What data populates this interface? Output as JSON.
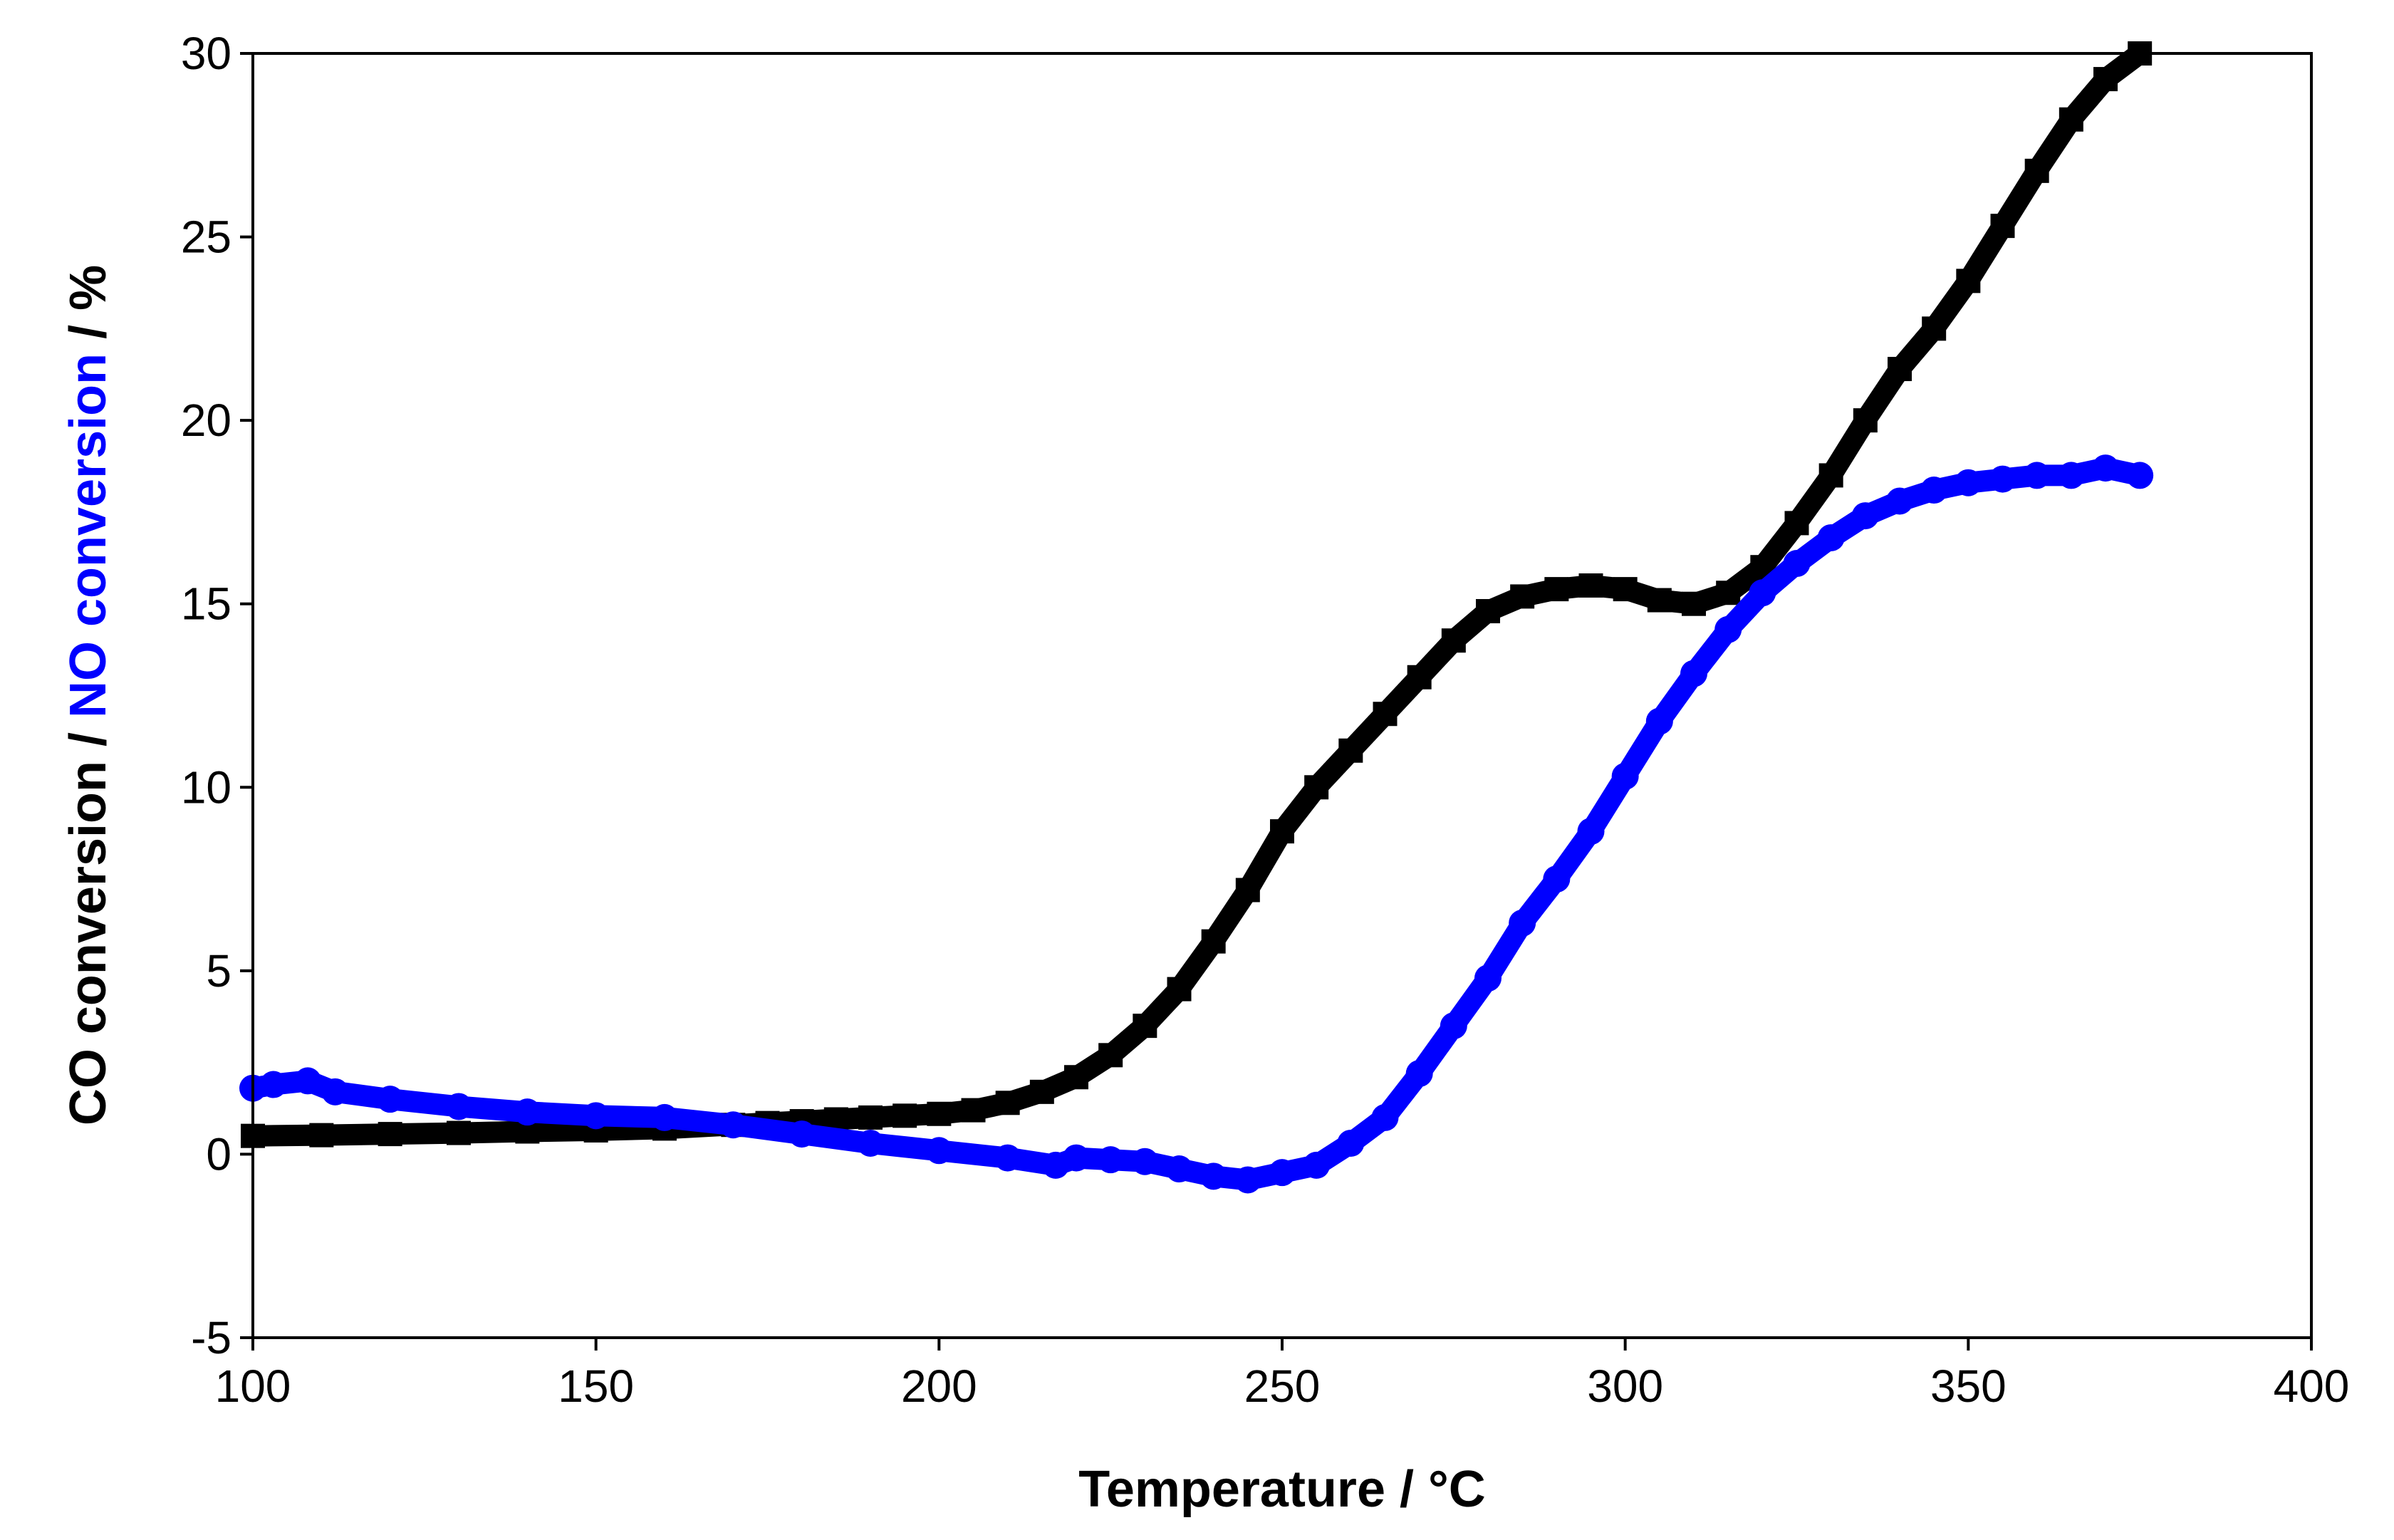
{
  "chart_data": {
    "type": "scatter",
    "title": "",
    "xlabel": "Temperature / °C",
    "ylabel_parts": [
      {
        "text": "CO conversion / ",
        "color": "#000000"
      },
      {
        "text": "NO",
        "color": "#0000ff"
      },
      {
        "text": " conversion",
        "color": "#0000ff"
      },
      {
        "text": " / %",
        "color": "#000000"
      }
    ],
    "xlim": [
      100,
      400
    ],
    "ylim": [
      -5,
      30
    ],
    "xticks": [
      100,
      150,
      200,
      250,
      300,
      350,
      400
    ],
    "yticks": [
      -5,
      0,
      5,
      10,
      15,
      20,
      25,
      30
    ],
    "xtick_labels": [
      "100",
      "150",
      "200",
      "250",
      "300",
      "350",
      "400"
    ],
    "ytick_labels": [
      "-5",
      "0",
      "5",
      "10",
      "15",
      "20",
      "25",
      "30"
    ],
    "grid": false,
    "legend": "none",
    "series": [
      {
        "name": "CO conversion",
        "color": "#000000",
        "marker": "square",
        "x": [
          100,
          110,
          120,
          130,
          140,
          150,
          160,
          170,
          175,
          180,
          185,
          190,
          195,
          200,
          205,
          210,
          215,
          220,
          225,
          230,
          235,
          240,
          245,
          250,
          255,
          260,
          265,
          270,
          275,
          280,
          285,
          290,
          295,
          300,
          305,
          310,
          315,
          320,
          325,
          330,
          335,
          340,
          345,
          350,
          355,
          360,
          365,
          370,
          375
        ],
        "values": [
          0.5,
          0.52,
          0.55,
          0.58,
          0.62,
          0.65,
          0.7,
          0.8,
          0.85,
          0.9,
          0.95,
          1.0,
          1.05,
          1.1,
          1.2,
          1.4,
          1.7,
          2.1,
          2.7,
          3.5,
          4.5,
          5.8,
          7.2,
          8.8,
          10.0,
          11.0,
          12.0,
          13.0,
          14.0,
          14.8,
          15.2,
          15.4,
          15.5,
          15.4,
          15.1,
          15.0,
          15.3,
          16.0,
          17.2,
          18.5,
          20.0,
          21.4,
          22.5,
          23.8,
          25.3,
          26.8,
          28.2,
          29.3,
          30.0
        ]
      },
      {
        "name": "NO conversion",
        "color": "#0000ff",
        "marker": "circle",
        "x": [
          100,
          103,
          108,
          112,
          120,
          130,
          140,
          150,
          160,
          170,
          180,
          190,
          200,
          210,
          217,
          220,
          225,
          230,
          235,
          240,
          245,
          250,
          255,
          260,
          265,
          270,
          275,
          280,
          285,
          290,
          295,
          300,
          305,
          310,
          315,
          320,
          325,
          330,
          335,
          340,
          345,
          350,
          355,
          360,
          365,
          370,
          375
        ],
        "values": [
          1.8,
          1.9,
          2.0,
          1.7,
          1.5,
          1.3,
          1.15,
          1.05,
          1.0,
          0.8,
          0.55,
          0.3,
          0.1,
          -0.1,
          -0.3,
          -0.1,
          -0.15,
          -0.2,
          -0.4,
          -0.6,
          -0.7,
          -0.5,
          -0.3,
          0.3,
          1.0,
          2.2,
          3.5,
          4.8,
          6.3,
          7.5,
          8.8,
          10.3,
          11.8,
          13.1,
          14.3,
          15.3,
          16.1,
          16.8,
          17.4,
          17.8,
          18.1,
          18.3,
          18.4,
          18.5,
          18.5,
          18.7,
          18.5
        ]
      }
    ]
  }
}
